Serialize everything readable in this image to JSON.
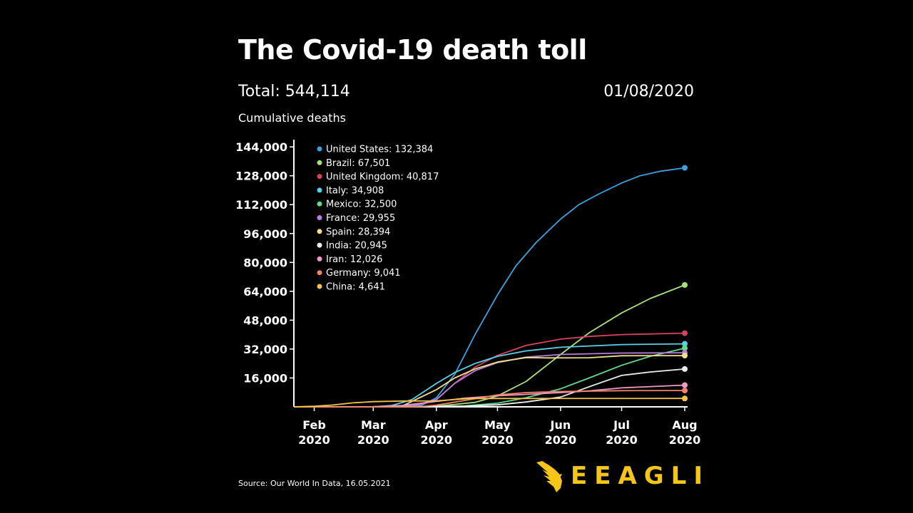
{
  "header": {
    "title": "The Covid-19 death toll",
    "total": "Total: 544,114",
    "date": "01/08/2020",
    "y_axis_label": "Cumulative deaths"
  },
  "footer": {
    "source": "Source: Our World In Data, 16.05.2021",
    "brand": "EEAGLI",
    "brand_color": "#f5c518"
  },
  "chart_data": {
    "type": "line",
    "title": "The Covid-19 death toll",
    "ylabel": "Cumulative deaths",
    "xlabel": "",
    "x_range": [
      "2020-01-22",
      "2020-08-01"
    ],
    "ylim": [
      0,
      148000
    ],
    "y_ticks": [
      16000,
      32000,
      48000,
      64000,
      80000,
      96000,
      112000,
      128000,
      144000
    ],
    "y_tick_labels": [
      "16,000",
      "32,000",
      "48,000",
      "64,000",
      "80,000",
      "96,000",
      "112,000",
      "128,000",
      "144,000"
    ],
    "x_ticks": [
      {
        "date": "2020-02-01",
        "label": [
          "Feb",
          "2020"
        ]
      },
      {
        "date": "2020-03-01",
        "label": [
          "Mar",
          "2020"
        ]
      },
      {
        "date": "2020-04-01",
        "label": [
          "Apr",
          "2020"
        ]
      },
      {
        "date": "2020-05-01",
        "label": [
          "May",
          "2020"
        ]
      },
      {
        "date": "2020-06-01",
        "label": [
          "Jun",
          "2020"
        ]
      },
      {
        "date": "2020-07-01",
        "label": [
          "Jul",
          "2020"
        ]
      },
      {
        "date": "2020-08-01",
        "label": [
          "Aug",
          "2020"
        ]
      }
    ],
    "legend_position": "top-left",
    "grid": false,
    "series": [
      {
        "name": "United States",
        "legend": "United States: 132,384",
        "color": "#3aa3dd",
        "points": [
          [
            "2020-03-10",
            0
          ],
          [
            "2020-03-25",
            1000
          ],
          [
            "2020-04-01",
            5000
          ],
          [
            "2020-04-10",
            18000
          ],
          [
            "2020-04-20",
            40000
          ],
          [
            "2020-05-01",
            62000
          ],
          [
            "2020-05-10",
            78000
          ],
          [
            "2020-05-20",
            91000
          ],
          [
            "2020-06-01",
            104000
          ],
          [
            "2020-06-10",
            112000
          ],
          [
            "2020-06-20",
            118000
          ],
          [
            "2020-07-01",
            124000
          ],
          [
            "2020-07-10",
            128000
          ],
          [
            "2020-07-20",
            130500
          ],
          [
            "2020-08-01",
            132384
          ]
        ]
      },
      {
        "name": "Brazil",
        "legend": "Brazil: 67,501",
        "color": "#a8e07a",
        "points": [
          [
            "2020-03-17",
            0
          ],
          [
            "2020-04-01",
            300
          ],
          [
            "2020-04-20",
            2500
          ],
          [
            "2020-05-01",
            6000
          ],
          [
            "2020-05-15",
            14000
          ],
          [
            "2020-06-01",
            29000
          ],
          [
            "2020-06-15",
            41000
          ],
          [
            "2020-07-01",
            52000
          ],
          [
            "2020-07-15",
            60000
          ],
          [
            "2020-08-01",
            67501
          ]
        ]
      },
      {
        "name": "United Kingdom",
        "legend": "United Kingdom: 40,817",
        "color": "#d9425e",
        "points": [
          [
            "2020-03-05",
            0
          ],
          [
            "2020-03-20",
            200
          ],
          [
            "2020-04-01",
            4000
          ],
          [
            "2020-04-10",
            13000
          ],
          [
            "2020-04-20",
            22000
          ],
          [
            "2020-05-01",
            28500
          ],
          [
            "2020-05-15",
            34000
          ],
          [
            "2020-06-01",
            37500
          ],
          [
            "2020-06-15",
            39000
          ],
          [
            "2020-07-01",
            40000
          ],
          [
            "2020-08-01",
            40817
          ]
        ]
      },
      {
        "name": "Italy",
        "legend": "Italy: 34,908",
        "color": "#5ad0e6",
        "points": [
          [
            "2020-02-21",
            0
          ],
          [
            "2020-03-01",
            50
          ],
          [
            "2020-03-10",
            700
          ],
          [
            "2020-03-20",
            4000
          ],
          [
            "2020-04-01",
            13000
          ],
          [
            "2020-04-10",
            19000
          ],
          [
            "2020-04-20",
            24000
          ],
          [
            "2020-05-01",
            28000
          ],
          [
            "2020-05-15",
            31000
          ],
          [
            "2020-06-01",
            33000
          ],
          [
            "2020-07-01",
            34500
          ],
          [
            "2020-08-01",
            34908
          ]
        ]
      },
      {
        "name": "Mexico",
        "legend": "Mexico: 32,500",
        "color": "#5fdc8c",
        "points": [
          [
            "2020-03-20",
            0
          ],
          [
            "2020-04-15",
            500
          ],
          [
            "2020-05-01",
            2000
          ],
          [
            "2020-05-15",
            5000
          ],
          [
            "2020-06-01",
            10000
          ],
          [
            "2020-06-15",
            16000
          ],
          [
            "2020-07-01",
            23000
          ],
          [
            "2020-07-15",
            28000
          ],
          [
            "2020-08-01",
            32500
          ]
        ]
      },
      {
        "name": "France",
        "legend": "France: 29,955",
        "color": "#b77ee0",
        "points": [
          [
            "2020-02-15",
            0
          ],
          [
            "2020-03-10",
            50
          ],
          [
            "2020-03-20",
            450
          ],
          [
            "2020-04-01",
            4000
          ],
          [
            "2020-04-10",
            13000
          ],
          [
            "2020-04-20",
            20000
          ],
          [
            "2020-05-01",
            24500
          ],
          [
            "2020-05-15",
            27500
          ],
          [
            "2020-06-01",
            29000
          ],
          [
            "2020-07-01",
            29800
          ],
          [
            "2020-08-01",
            29955
          ]
        ]
      },
      {
        "name": "Spain",
        "legend": "Spain: 28,394",
        "color": "#f5e08c",
        "points": [
          [
            "2020-03-03",
            0
          ],
          [
            "2020-03-15",
            300
          ],
          [
            "2020-04-01",
            9500
          ],
          [
            "2020-04-10",
            16000
          ],
          [
            "2020-04-20",
            21000
          ],
          [
            "2020-05-01",
            24800
          ],
          [
            "2020-05-15",
            27300
          ],
          [
            "2020-05-25",
            27100
          ],
          [
            "2020-06-15",
            27200
          ],
          [
            "2020-07-01",
            28300
          ],
          [
            "2020-08-01",
            28394
          ]
        ]
      },
      {
        "name": "India",
        "legend": "India: 20,945",
        "color": "#ececec",
        "points": [
          [
            "2020-03-12",
            0
          ],
          [
            "2020-04-15",
            400
          ],
          [
            "2020-05-01",
            1100
          ],
          [
            "2020-05-15",
            2700
          ],
          [
            "2020-06-01",
            5400
          ],
          [
            "2020-06-17",
            11900
          ],
          [
            "2020-07-01",
            17400
          ],
          [
            "2020-07-15",
            19300
          ],
          [
            "2020-08-01",
            20945
          ]
        ]
      },
      {
        "name": "Iran",
        "legend": "Iran: 12,026",
        "color": "#ef9ac6",
        "points": [
          [
            "2020-02-19",
            0
          ],
          [
            "2020-03-01",
            60
          ],
          [
            "2020-03-15",
            700
          ],
          [
            "2020-04-01",
            3000
          ],
          [
            "2020-04-15",
            4800
          ],
          [
            "2020-05-01",
            6100
          ],
          [
            "2020-05-15",
            6900
          ],
          [
            "2020-06-01",
            7900
          ],
          [
            "2020-06-15",
            8800
          ],
          [
            "2020-07-01",
            10500
          ],
          [
            "2020-08-01",
            12026
          ]
        ]
      },
      {
        "name": "Germany",
        "legend": "Germany: 9,041",
        "color": "#f4846a",
        "points": [
          [
            "2020-03-09",
            0
          ],
          [
            "2020-03-25",
            200
          ],
          [
            "2020-04-01",
            900
          ],
          [
            "2020-04-10",
            2600
          ],
          [
            "2020-04-20",
            4500
          ],
          [
            "2020-05-01",
            6600
          ],
          [
            "2020-05-15",
            7900
          ],
          [
            "2020-06-01",
            8500
          ],
          [
            "2020-07-01",
            8950
          ],
          [
            "2020-08-01",
            9041
          ]
        ]
      },
      {
        "name": "China",
        "legend": "China: 4,641",
        "color": "#f5c447",
        "points": [
          [
            "2020-01-22",
            0
          ],
          [
            "2020-02-01",
            300
          ],
          [
            "2020-02-10",
            1000
          ],
          [
            "2020-02-20",
            2200
          ],
          [
            "2020-03-01",
            2900
          ],
          [
            "2020-03-15",
            3200
          ],
          [
            "2020-04-01",
            3320
          ],
          [
            "2020-04-17",
            4630
          ],
          [
            "2020-08-01",
            4641
          ]
        ]
      }
    ]
  }
}
